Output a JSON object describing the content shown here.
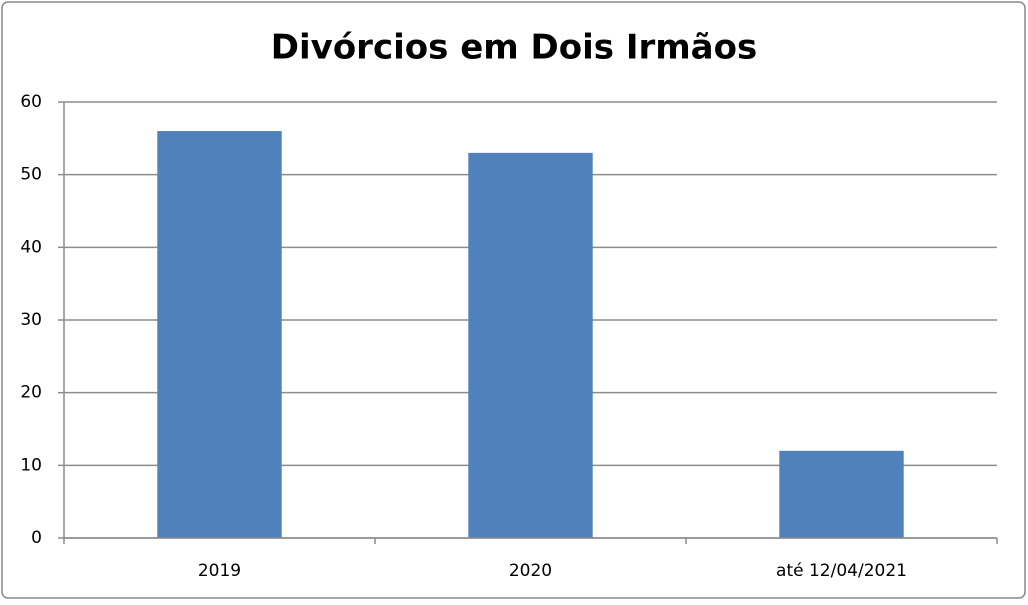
{
  "chart_data": {
    "type": "bar",
    "title": "Divórcios em Dois Irmãos",
    "categories": [
      "2019",
      "2020",
      "até 12/04/2021"
    ],
    "values": [
      56,
      53,
      12
    ],
    "color": "#4f81bd",
    "ylim": [
      0,
      60
    ],
    "yticks": [
      0,
      10,
      20,
      30,
      40,
      50,
      60
    ],
    "grid": true
  }
}
